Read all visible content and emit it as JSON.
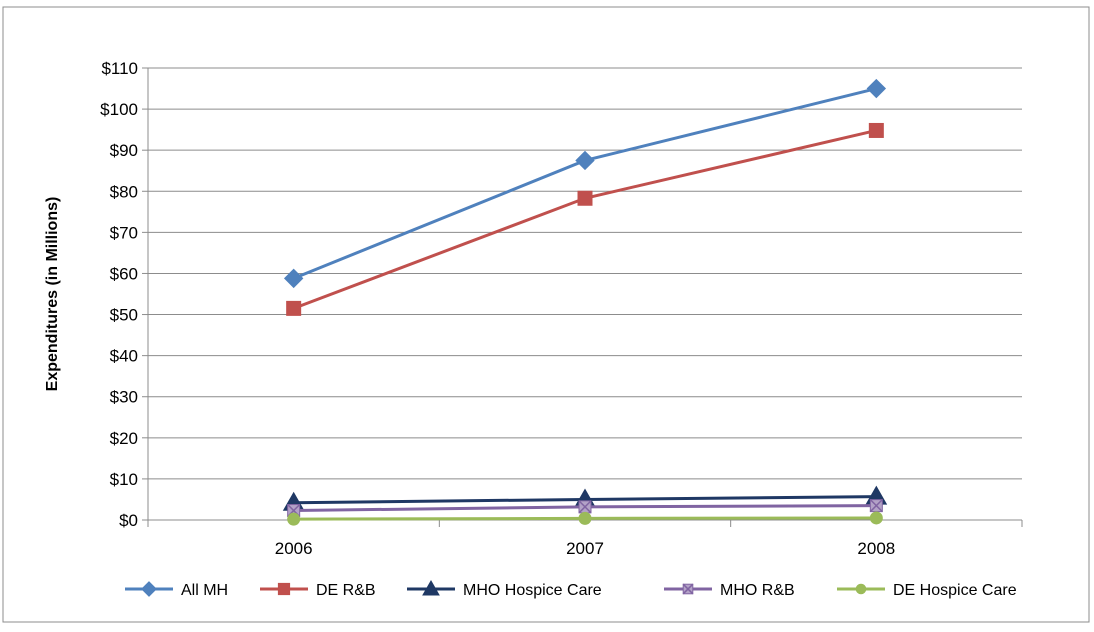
{
  "chart_data": {
    "type": "line",
    "title": "",
    "ylabel": "Expenditures (in Millions)",
    "xlabel": "",
    "categories": [
      "2006",
      "2007",
      "2008"
    ],
    "ylim": [
      0,
      110
    ],
    "yticks": [
      "$0",
      "$10",
      "$20",
      "$30",
      "$40",
      "$50",
      "$60",
      "$70",
      "$80",
      "$90",
      "$100",
      "$110"
    ],
    "grid": true,
    "legend_position": "bottom",
    "series": [
      {
        "name": "All MH",
        "values": [
          58.8,
          87.5,
          105.0
        ],
        "color": "#4f81bd",
        "marker": "diamond"
      },
      {
        "name": "DE R&B",
        "values": [
          51.5,
          78.3,
          94.8
        ],
        "color": "#c0504d",
        "marker": "square"
      },
      {
        "name": "MHO Hospice Care",
        "values": [
          4.2,
          5.0,
          5.7
        ],
        "color": "#1f3864",
        "marker": "triangle"
      },
      {
        "name": "MHO R&B",
        "values": [
          2.3,
          3.2,
          3.5
        ],
        "color": "#8064a2",
        "marker": "x-square"
      },
      {
        "name": "DE Hospice Care",
        "values": [
          0.2,
          0.4,
          0.5
        ],
        "color": "#9bbb59",
        "marker": "circle"
      }
    ]
  }
}
